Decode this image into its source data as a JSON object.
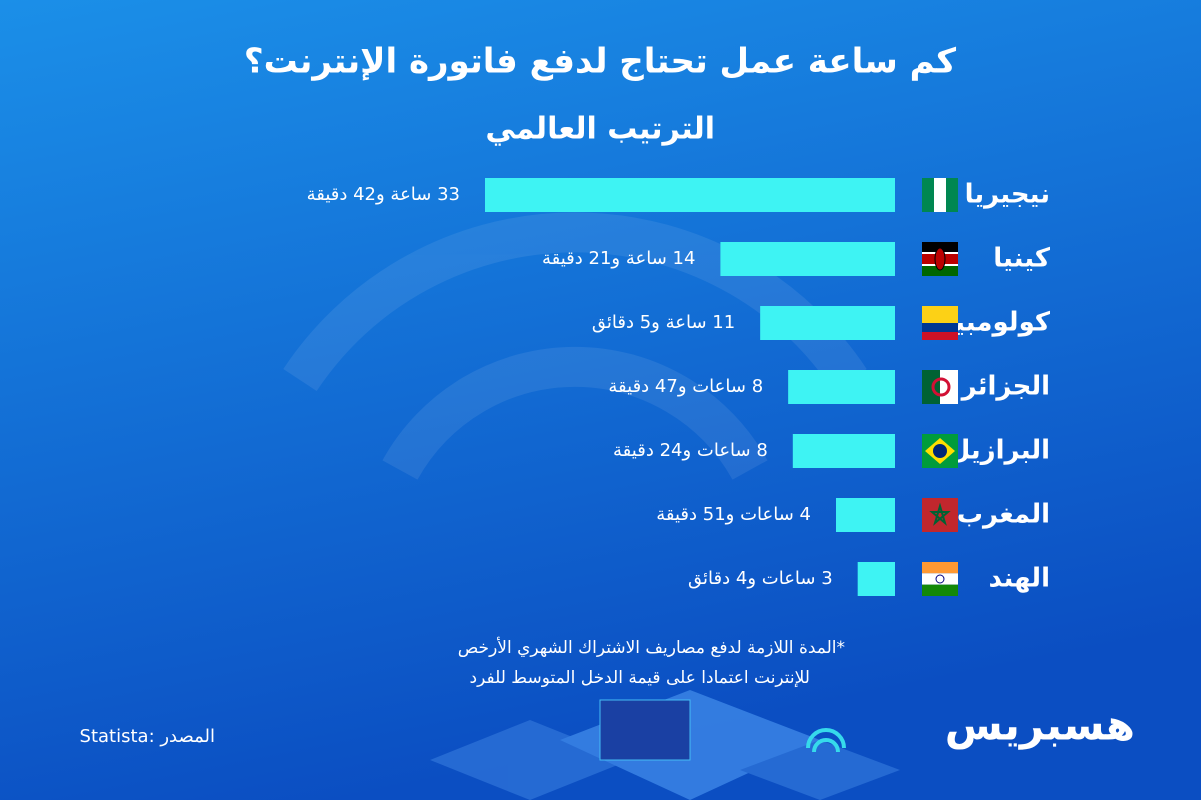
{
  "chart_data": {
    "type": "bar",
    "title": "كم ساعة عمل تحتاج لدفع فاتورة الإنترنت؟",
    "subtitle": "الترتيب العالمي",
    "categories": [
      "نيجيريا",
      "كينيا",
      "كولومبيا",
      "الجزائر",
      "البرازيل",
      "المغرب",
      "الهند"
    ],
    "values": [
      33.7,
      14.35,
      11.083,
      8.783,
      8.4,
      4.85,
      3.067
    ],
    "value_labels": [
      "33 ساعة و42 دقيقة",
      "14 ساعة و21 دقيقة",
      "11 ساعة و5 دقائق",
      "8 ساعات و47 دقيقة",
      "8 ساعات و24 دقيقة",
      "4  ساعات و51 دقيقة",
      "3 ساعات و4 دقائق"
    ],
    "color": "#3ef3f3",
    "notes": [
      "*المدة اللازمة لدفع مصاريف الاشتراك الشهري الأرخص",
      "للإنترنت اعتمادا على قيمة الدخل المتوسط للفرد"
    ],
    "source": "المصدر :Statista",
    "brand": "هسبريس"
  }
}
